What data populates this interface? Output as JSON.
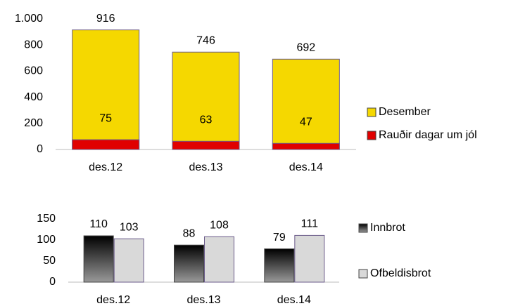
{
  "chart_data": [
    {
      "type": "bar",
      "barmode": "overlay",
      "categories": [
        "des.12",
        "des.13",
        "des.14"
      ],
      "series": [
        {
          "name": "Desember",
          "color": "#f5d800",
          "values": [
            916,
            746,
            692
          ]
        },
        {
          "name": "Rauðir dagar um jól",
          "color": "#e00000",
          "values": [
            75,
            63,
            47
          ]
        }
      ],
      "ylim": [
        0,
        1000
      ],
      "yticks": [
        0,
        200,
        400,
        600,
        800,
        {
          "value": 1000,
          "label": "1.000"
        }
      ],
      "grid": false
    },
    {
      "type": "bar",
      "barmode": "group",
      "categories": [
        "des.12",
        "des.13",
        "des.14"
      ],
      "series": [
        {
          "name": "Innbrot",
          "color": "#2a2a2a",
          "values": [
            110,
            88,
            79
          ]
        },
        {
          "name": "Ofbeldisbrot",
          "color": "#d9d9d9",
          "values": [
            103,
            108,
            111
          ]
        }
      ],
      "ylim": [
        0,
        150
      ],
      "yticks": [
        0,
        50,
        100,
        150
      ],
      "grid": false
    }
  ]
}
